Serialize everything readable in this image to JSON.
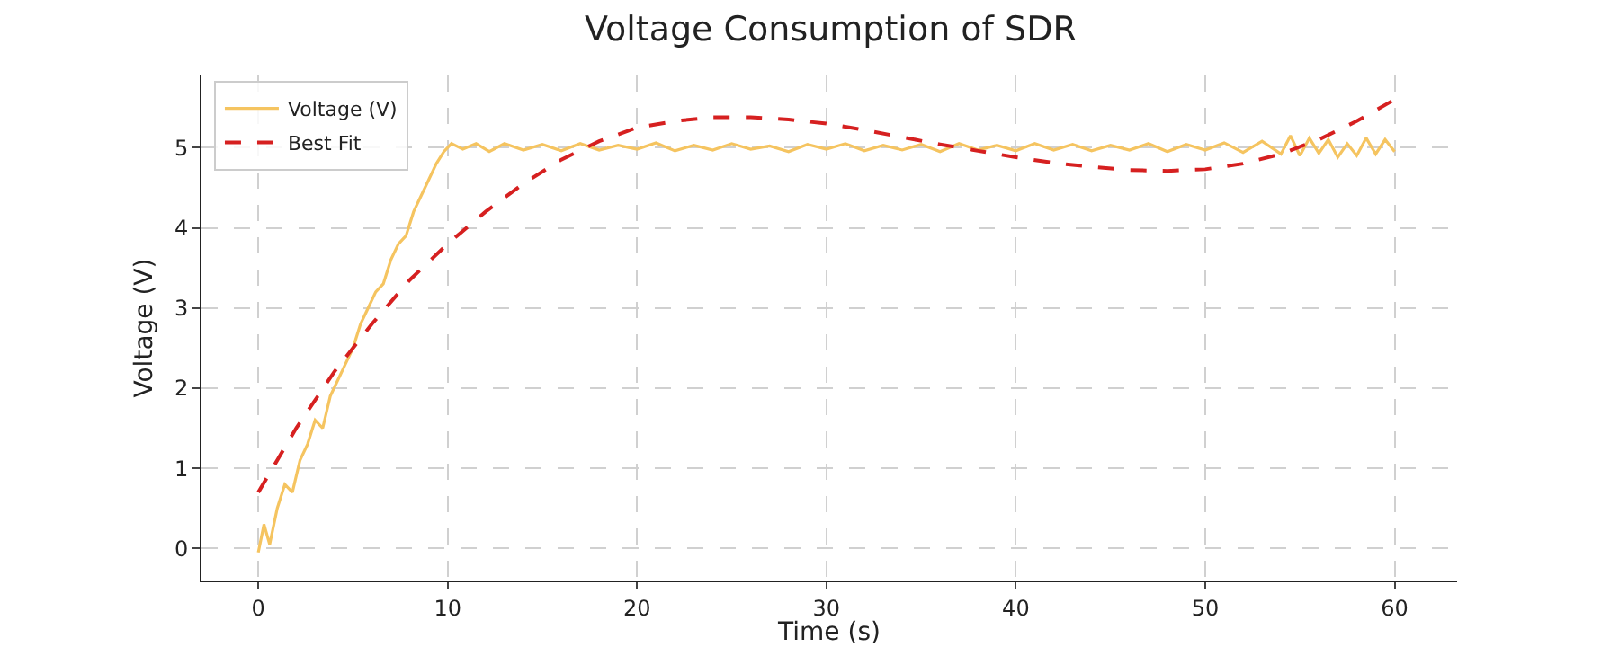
{
  "chart_data": {
    "type": "line",
    "title": "Voltage Consumption of SDR",
    "xlabel": "Time (s)",
    "ylabel": "Voltage (V)",
    "xlim": [
      -3,
      63.3
    ],
    "xticks": [
      0,
      10,
      20,
      30,
      40,
      50,
      60
    ],
    "ylim": [
      -0.4,
      5.9
    ],
    "yticks": [
      0,
      1,
      2,
      3,
      4,
      5
    ],
    "grid": true,
    "legend": "top left",
    "series": [
      {
        "name": "Voltage (V)",
        "color": "#f5c460",
        "line_style": "solid",
        "x": [
          0,
          0.3,
          0.6,
          1,
          1.4,
          1.8,
          2.2,
          2.6,
          3,
          3.4,
          3.8,
          4.2,
          4.6,
          5,
          5.4,
          5.8,
          6.2,
          6.6,
          7,
          7.4,
          7.8,
          8.2,
          8.6,
          9,
          9.4,
          9.8,
          10.2,
          10.8,
          11.5,
          12.2,
          13,
          14,
          15,
          16,
          17,
          18,
          19,
          20,
          21,
          22,
          23,
          24,
          25,
          26,
          27,
          28,
          29,
          30,
          31,
          32,
          33,
          34,
          35,
          36,
          37,
          38,
          39,
          40,
          41,
          42,
          43,
          44,
          45,
          46,
          47,
          48,
          49,
          50,
          51,
          52,
          53,
          54,
          54.5,
          55,
          55.5,
          56,
          56.5,
          57,
          57.5,
          58,
          58.5,
          59,
          59.5,
          60
        ],
        "values": [
          -0.05,
          0.3,
          0.05,
          0.5,
          0.8,
          0.7,
          1.1,
          1.3,
          1.6,
          1.5,
          1.9,
          2.1,
          2.3,
          2.5,
          2.8,
          3,
          3.2,
          3.3,
          3.6,
          3.8,
          3.9,
          4.2,
          4.4,
          4.6,
          4.8,
          4.95,
          5.05,
          4.98,
          5.05,
          4.95,
          5.05,
          4.97,
          5.04,
          4.96,
          5.05,
          4.97,
          5.03,
          4.98,
          5.06,
          4.96,
          5.03,
          4.97,
          5.05,
          4.98,
          5.02,
          4.95,
          5.04,
          4.98,
          5.05,
          4.96,
          5.03,
          4.97,
          5.04,
          4.95,
          5.05,
          4.97,
          5.03,
          4.96,
          5.05,
          4.97,
          5.04,
          4.96,
          5.03,
          4.97,
          5.05,
          4.95,
          5.04,
          4.97,
          5.06,
          4.94,
          5.08,
          4.92,
          5.15,
          4.9,
          5.12,
          4.93,
          5.1,
          4.88,
          5.05,
          4.9,
          5.12,
          4.92,
          5.1,
          4.95
        ]
      },
      {
        "name": "Best Fit",
        "color": "#d62020",
        "line_style": "dashed",
        "x": [
          0,
          2,
          4,
          6,
          8,
          10,
          12,
          14,
          16,
          18,
          20,
          22,
          24,
          26,
          28,
          30,
          32,
          34,
          36,
          38,
          40,
          42,
          44,
          46,
          48,
          50,
          52,
          54,
          56,
          58,
          60
        ],
        "values": [
          0.7,
          1.5,
          2.2,
          2.8,
          3.35,
          3.8,
          4.2,
          4.55,
          4.85,
          5.08,
          5.25,
          5.33,
          5.38,
          5.38,
          5.35,
          5.3,
          5.22,
          5.13,
          5.04,
          4.96,
          4.88,
          4.81,
          4.76,
          4.72,
          4.71,
          4.73,
          4.8,
          4.92,
          5.1,
          5.33,
          5.6
        ]
      }
    ]
  }
}
